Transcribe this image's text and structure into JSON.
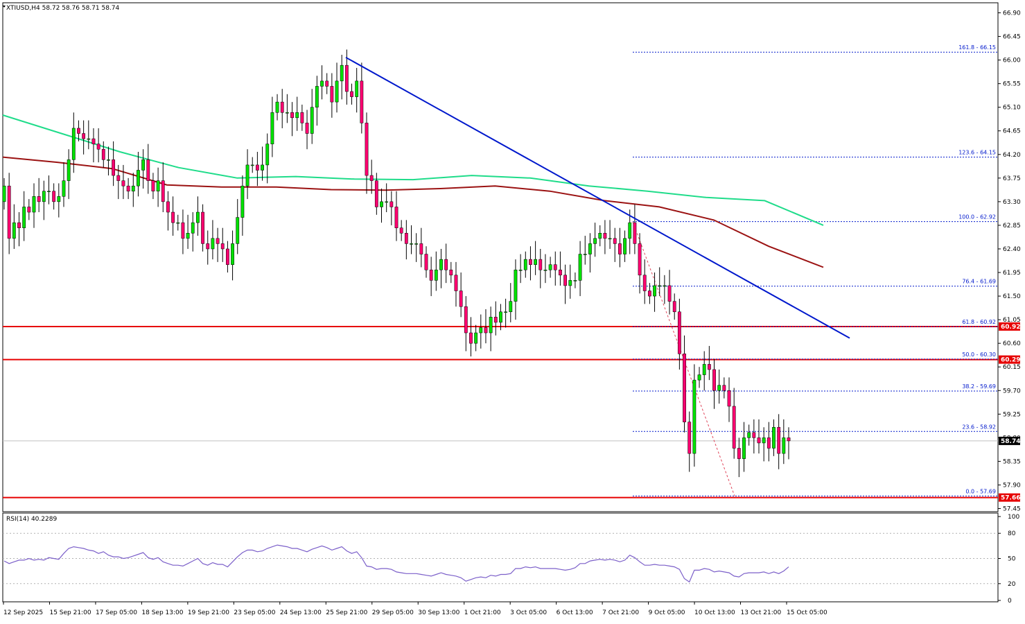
{
  "header": {
    "symbol_line": "XTIUSD,H4  58.72 58.76 58.71 58.74",
    "rsi_label": "RSI(14) 40.2289"
  },
  "colors": {
    "bull": "#00e000",
    "bear": "#ff0070",
    "trendline": "#0018cc",
    "ma_slow": "#9b1212",
    "ma_fast": "#1fdc8a",
    "resistance": "#e60000",
    "fib": "#0018cc",
    "rsi": "#7b5fc9"
  },
  "chart_data": [
    {
      "type": "candlestick",
      "symbol": "XTIUSD",
      "timeframe": "H4",
      "ohlc_last": {
        "open": 58.72,
        "high": 58.76,
        "low": 58.71,
        "close": 58.74
      },
      "ylim": [
        57.45,
        66.9
      ],
      "price_ticks": [
        "66.90",
        "66.45",
        "66.00",
        "65.55",
        "65.10",
        "64.65",
        "64.20",
        "63.75",
        "63.30",
        "62.85",
        "62.40",
        "61.95",
        "61.50",
        "61.05",
        "60.60",
        "60.15",
        "59.70",
        "59.25",
        "58.80",
        "58.35",
        "57.90",
        "57.45"
      ],
      "time_labels": [
        "12 Sep 2025",
        "15 Sep 21:00",
        "17 Sep 05:00",
        "18 Sep 13:00",
        "19 Sep 21:00",
        "23 Sep 05:00",
        "24 Sep 13:00",
        "25 Sep 21:00",
        "29 Sep 05:00",
        "30 Sep 13:00",
        "1 Oct 21:00",
        "3 Oct 05:00",
        "6 Oct 13:00",
        "7 Oct 21:00",
        "9 Oct 05:00",
        "10 Oct 13:00",
        "13 Oct 21:00",
        "15 Oct 05:00"
      ],
      "closes": [
        63.6,
        62.6,
        62.9,
        62.8,
        63.2,
        63.1,
        63.4,
        63.3,
        63.5,
        63.5,
        63.3,
        63.4,
        63.7,
        64.1,
        64.7,
        64.6,
        64.5,
        64.5,
        64.4,
        64.3,
        64.1,
        64.1,
        63.8,
        63.7,
        63.6,
        63.5,
        63.6,
        63.9,
        64.1,
        63.7,
        63.5,
        63.7,
        63.3,
        63.1,
        62.9,
        62.9,
        62.6,
        62.7,
        62.9,
        63.1,
        62.5,
        62.4,
        62.6,
        62.5,
        62.4,
        62.1,
        62.5,
        63.0,
        63.6,
        64.0,
        64.0,
        63.9,
        64.0,
        64.4,
        65.0,
        65.2,
        65.0,
        65.0,
        64.9,
        65.0,
        64.8,
        64.6,
        65.1,
        65.5,
        65.6,
        65.5,
        65.2,
        65.6,
        65.9,
        65.4,
        65.3,
        65.6,
        64.8,
        63.8,
        63.7,
        63.2,
        63.3,
        63.3,
        63.2,
        62.8,
        62.7,
        62.5,
        62.5,
        62.5,
        62.3,
        62.0,
        61.8,
        62.0,
        62.2,
        62.0,
        61.9,
        61.6,
        61.3,
        60.8,
        60.6,
        60.8,
        60.9,
        60.8,
        61.1,
        61.0,
        61.2,
        61.2,
        61.4,
        62.0,
        62.0,
        62.2,
        62.1,
        62.2,
        62.0,
        62.0,
        62.1,
        62.0,
        61.9,
        61.7,
        61.8,
        61.8,
        62.3,
        62.3,
        62.5,
        62.6,
        62.7,
        62.6,
        62.6,
        62.5,
        62.3,
        62.6,
        62.9,
        62.5,
        61.9,
        61.6,
        61.5,
        61.7,
        61.7,
        61.7,
        61.4,
        61.2,
        60.4,
        59.1,
        58.5,
        59.9,
        60.0,
        60.2,
        60.1,
        59.7,
        59.8,
        59.7,
        59.4,
        58.6,
        58.4,
        58.8,
        58.9,
        58.8,
        58.7,
        58.8,
        58.6,
        59.0,
        58.5,
        58.8,
        58.74
      ],
      "moving_averages": [
        {
          "role": "fast",
          "color": "#1fdc8a",
          "values": [
            64.95,
            64.6,
            64.25,
            63.95,
            63.75,
            63.78,
            63.73,
            63.72,
            63.8,
            63.75,
            63.6,
            63.5,
            63.38,
            63.32,
            62.85
          ]
        },
        {
          "role": "slow",
          "color": "#9b1212",
          "values": [
            64.15,
            64.05,
            63.93,
            63.62,
            63.58,
            63.58,
            63.53,
            63.52,
            63.55,
            63.6,
            63.5,
            63.32,
            63.2,
            62.95,
            62.45,
            62.05
          ]
        }
      ],
      "horizontal_levels": [
        {
          "label": "60.92",
          "value": 60.92
        },
        {
          "label": "60.29",
          "value": 60.29
        },
        {
          "label": "57.66",
          "value": 57.66
        }
      ],
      "current_price": "58.74",
      "trendline": {
        "from": {
          "label": "25 Sep 21:00",
          "price": 66.05
        },
        "to": {
          "label": "15 Oct",
          "price": 60.7
        }
      },
      "fibonacci": [
        {
          "label": "161.8 - 66.15",
          "value": 66.15
        },
        {
          "label": "123.6 - 64.15",
          "value": 64.15
        },
        {
          "label": "100.0 - 62.92",
          "value": 62.92
        },
        {
          "label": "76.4 - 61.69",
          "value": 61.69
        },
        {
          "label": "61.8 - 60.92",
          "value": 60.92
        },
        {
          "label": "50.0 - 60.30",
          "value": 60.3
        },
        {
          "label": "38.2 - 59.69",
          "value": 59.69
        },
        {
          "label": "23.6 - 58.92",
          "value": 58.92
        },
        {
          "label": "0.0 - 57.69",
          "value": 57.69
        }
      ]
    },
    {
      "type": "line",
      "indicator": "RSI(14)",
      "last_value": 40.2289,
      "ylim": [
        0,
        100
      ],
      "ticks": [
        "100",
        "80",
        "50",
        "20",
        "0"
      ],
      "levels": [
        80,
        50,
        20
      ],
      "values": [
        47,
        44,
        46,
        48,
        48,
        50,
        48,
        49,
        48,
        51,
        50,
        49,
        56,
        62,
        64,
        63,
        62,
        60,
        59,
        56,
        58,
        54,
        52,
        52,
        50,
        51,
        53,
        55,
        57,
        51,
        49,
        51,
        46,
        44,
        42,
        42,
        41,
        44,
        47,
        50,
        44,
        42,
        45,
        43,
        43,
        40,
        46,
        52,
        57,
        60,
        60,
        58,
        59,
        62,
        64,
        66,
        65,
        64,
        62,
        62,
        60,
        58,
        61,
        63,
        65,
        63,
        60,
        62,
        64,
        59,
        56,
        58,
        51,
        41,
        40,
        37,
        38,
        38,
        37,
        34,
        33,
        32,
        32,
        32,
        31,
        30,
        29,
        31,
        33,
        31,
        30,
        29,
        27,
        23,
        25,
        27,
        28,
        27,
        30,
        29,
        31,
        31,
        32,
        38,
        38,
        40,
        39,
        40,
        38,
        38,
        38,
        38,
        37,
        36,
        37,
        39,
        44,
        44,
        47,
        48,
        49,
        48,
        49,
        48,
        46,
        48,
        54,
        51,
        46,
        42,
        42,
        43,
        42,
        42,
        41,
        40,
        37,
        26,
        22,
        36,
        36,
        38,
        37,
        34,
        35,
        34,
        33,
        29,
        28,
        32,
        33,
        33,
        33,
        34,
        32,
        34,
        32,
        35,
        40
      ]
    }
  ]
}
